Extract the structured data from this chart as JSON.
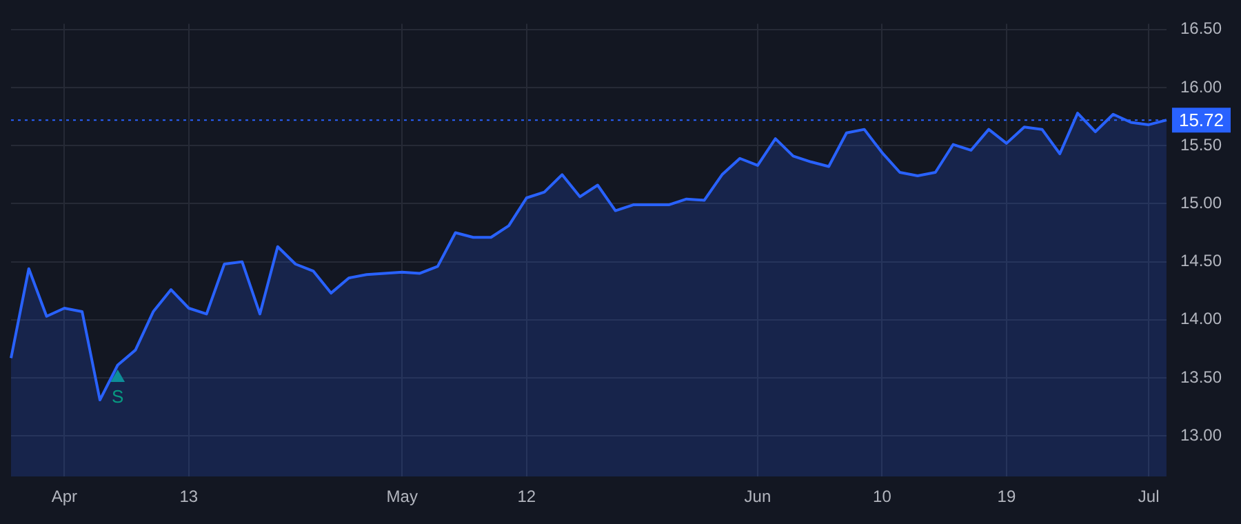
{
  "chart_data": {
    "type": "area",
    "categories": [
      null,
      null,
      null,
      "Apr",
      null,
      null,
      null,
      null,
      null,
      null,
      "13",
      null,
      null,
      null,
      null,
      null,
      null,
      null,
      null,
      null,
      null,
      null,
      "May",
      null,
      null,
      null,
      null,
      null,
      null,
      "12",
      null,
      null,
      null,
      null,
      null,
      null,
      null,
      null,
      null,
      null,
      null,
      null,
      "Jun",
      null,
      null,
      null,
      null,
      null,
      null,
      "10",
      null,
      null,
      null,
      null,
      null,
      null,
      "19",
      null,
      null,
      null,
      null,
      null,
      null,
      null,
      "Jul",
      null
    ],
    "series": [
      {
        "color": "#2962ff",
        "values": [
          13.67,
          14.44,
          14.03,
          14.1,
          14.07,
          13.31,
          13.61,
          13.74,
          14.07,
          14.26,
          14.1,
          14.05,
          14.48,
          14.5,
          14.05,
          14.63,
          14.48,
          14.42,
          14.23,
          14.36,
          14.39,
          14.4,
          14.41,
          14.4,
          14.46,
          14.75,
          14.71,
          14.71,
          14.81,
          15.05,
          15.1,
          15.25,
          15.06,
          15.16,
          14.94,
          14.99,
          14.99,
          14.99,
          15.04,
          15.03,
          15.25,
          15.39,
          15.33,
          15.56,
          15.41,
          15.36,
          15.32,
          15.61,
          15.64,
          15.44,
          15.27,
          15.24,
          15.27,
          15.51,
          15.46,
          15.64,
          15.52,
          15.66,
          15.64,
          15.43,
          15.78,
          15.62,
          15.77,
          15.7,
          15.68,
          15.72
        ]
      },
      {
        "type": "scatter",
        "name": "S",
        "color": "#089981",
        "marker": "triangle",
        "values": [
          null,
          null,
          null,
          null,
          null,
          null,
          13.5,
          null,
          null,
          null,
          null,
          null,
          null,
          null,
          null,
          null,
          null,
          null,
          null,
          null,
          null,
          null,
          null,
          null,
          null,
          null,
          null,
          null,
          null,
          null,
          null,
          null,
          null,
          null,
          null,
          null,
          null,
          null,
          null,
          null,
          null,
          null,
          null,
          null,
          null,
          null,
          null,
          null,
          null,
          null,
          null,
          null,
          null,
          null,
          null,
          null,
          null,
          null,
          null,
          null,
          null,
          null,
          null,
          null,
          null,
          null
        ]
      }
    ],
    "ylim": [
      12.65,
      16.55
    ],
    "yticks": [
      {
        "value": 13,
        "label": "13.00"
      },
      {
        "value": 13.5,
        "label": "13.50"
      },
      {
        "value": 14,
        "label": "14.00"
      },
      {
        "value": 14.5,
        "label": "14.50"
      },
      {
        "value": 15,
        "label": "15.00"
      },
      {
        "value": 15.5,
        "label": "15.50"
      },
      {
        "value": 16,
        "label": "16.00"
      },
      {
        "value": 16.5,
        "label": "16.50"
      }
    ],
    "grid": true,
    "ref_lines": [
      {
        "axis": "y",
        "value": 15.72,
        "label": "15.72",
        "color": "#2962ff",
        "line_style": "dotted"
      }
    ]
  }
}
